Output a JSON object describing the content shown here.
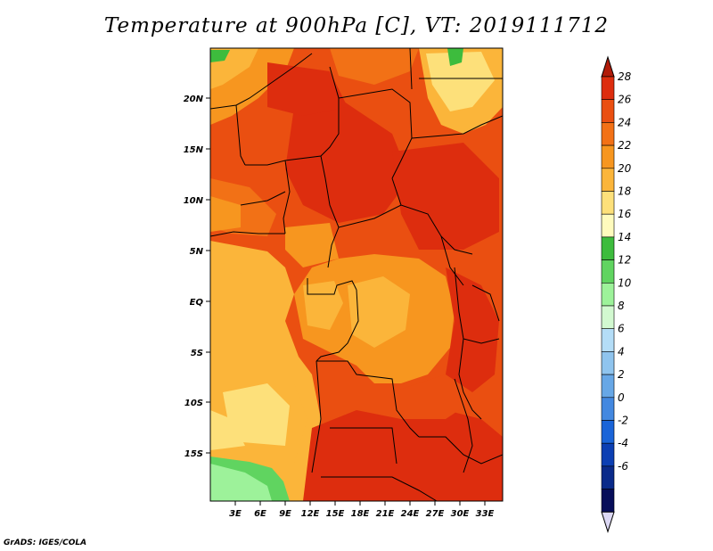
{
  "title": "Temperature at 900hPa [C], VT: 2019111712",
  "footer": "GrADS: IGES/COLA",
  "chart_data": {
    "type": "heatmap",
    "title": "Temperature at 900hPa [C], VT: 2019111712",
    "lat_ticks": [
      "20N",
      "15N",
      "10N",
      "5N",
      "EQ",
      "5S",
      "10S",
      "15S"
    ],
    "lat_values": [
      20,
      15,
      10,
      5,
      0,
      -5,
      -10,
      -15
    ],
    "lon_ticks": [
      "3E",
      "6E",
      "9E",
      "12E",
      "15E",
      "18E",
      "21E",
      "24E",
      "27E",
      "30E",
      "33E"
    ],
    "lon_values": [
      3,
      6,
      9,
      12,
      15,
      18,
      21,
      24,
      27,
      30,
      33
    ],
    "lat_range": [
      -20,
      24.5
    ],
    "lon_range": [
      0,
      35
    ],
    "colorbar": {
      "levels": [
        "28",
        "26",
        "24",
        "22",
        "20",
        "18",
        "16",
        "14",
        "12",
        "10",
        "8",
        "6",
        "4",
        "2",
        "0",
        "-2",
        "-4",
        "-6"
      ],
      "colors": [
        "#dd2d0e",
        "#ea4f11",
        "#f27116",
        "#f7961f",
        "#fbb53a",
        "#fde07a",
        "#fffbbd",
        "#3dbc3d",
        "#60d460",
        "#9df29a",
        "#d2f9d0",
        "#b4ddf7",
        "#8fc4ee",
        "#67a7e6",
        "#4388e0",
        "#1a64d8",
        "#0c3fb3",
        "#0a2a8a",
        "#070e5a"
      ],
      "top_arrow_color": "#b11b09",
      "bottom_arrow_color": "#dcd8f4"
    }
  }
}
